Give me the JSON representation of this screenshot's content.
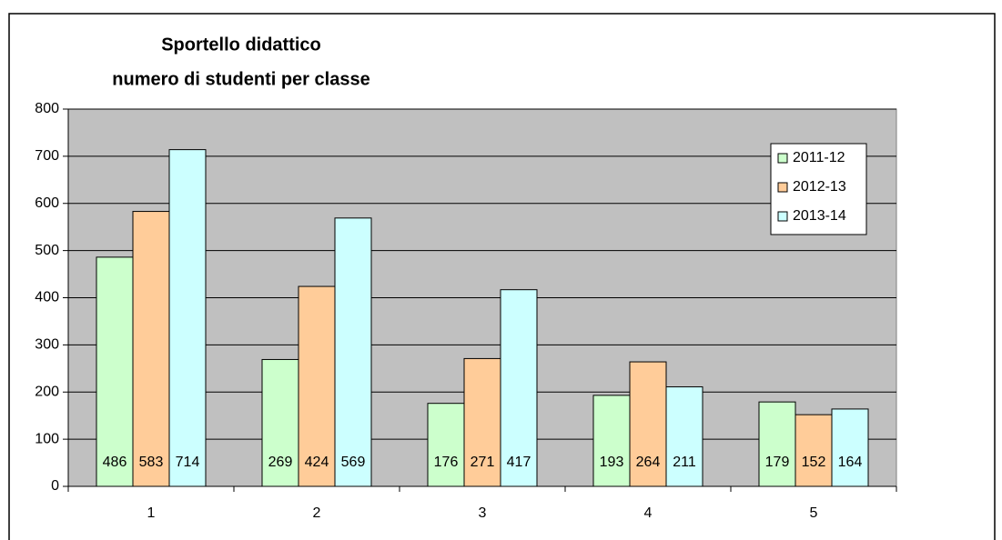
{
  "chart_data": {
    "type": "bar",
    "title": [
      "Sportello didattico",
      "numero di studenti per classe"
    ],
    "categories": [
      "1",
      "2",
      "3",
      "4",
      "5"
    ],
    "series": [
      {
        "name": "2011-12",
        "color": "#ccffcc",
        "values": [
          486,
          269,
          176,
          193,
          179
        ]
      },
      {
        "name": "2012-13",
        "color": "#ffcc99",
        "values": [
          583,
          424,
          271,
          264,
          152
        ]
      },
      {
        "name": "2013-14",
        "color": "#ccffff",
        "values": [
          714,
          569,
          417,
          211,
          164
        ]
      }
    ],
    "ylim": [
      0,
      800
    ],
    "yticks": [
      0,
      100,
      200,
      300,
      400,
      500,
      600,
      700,
      800
    ],
    "grid": true,
    "legend": "upper right",
    "plot_background": "#c0c0c0"
  }
}
